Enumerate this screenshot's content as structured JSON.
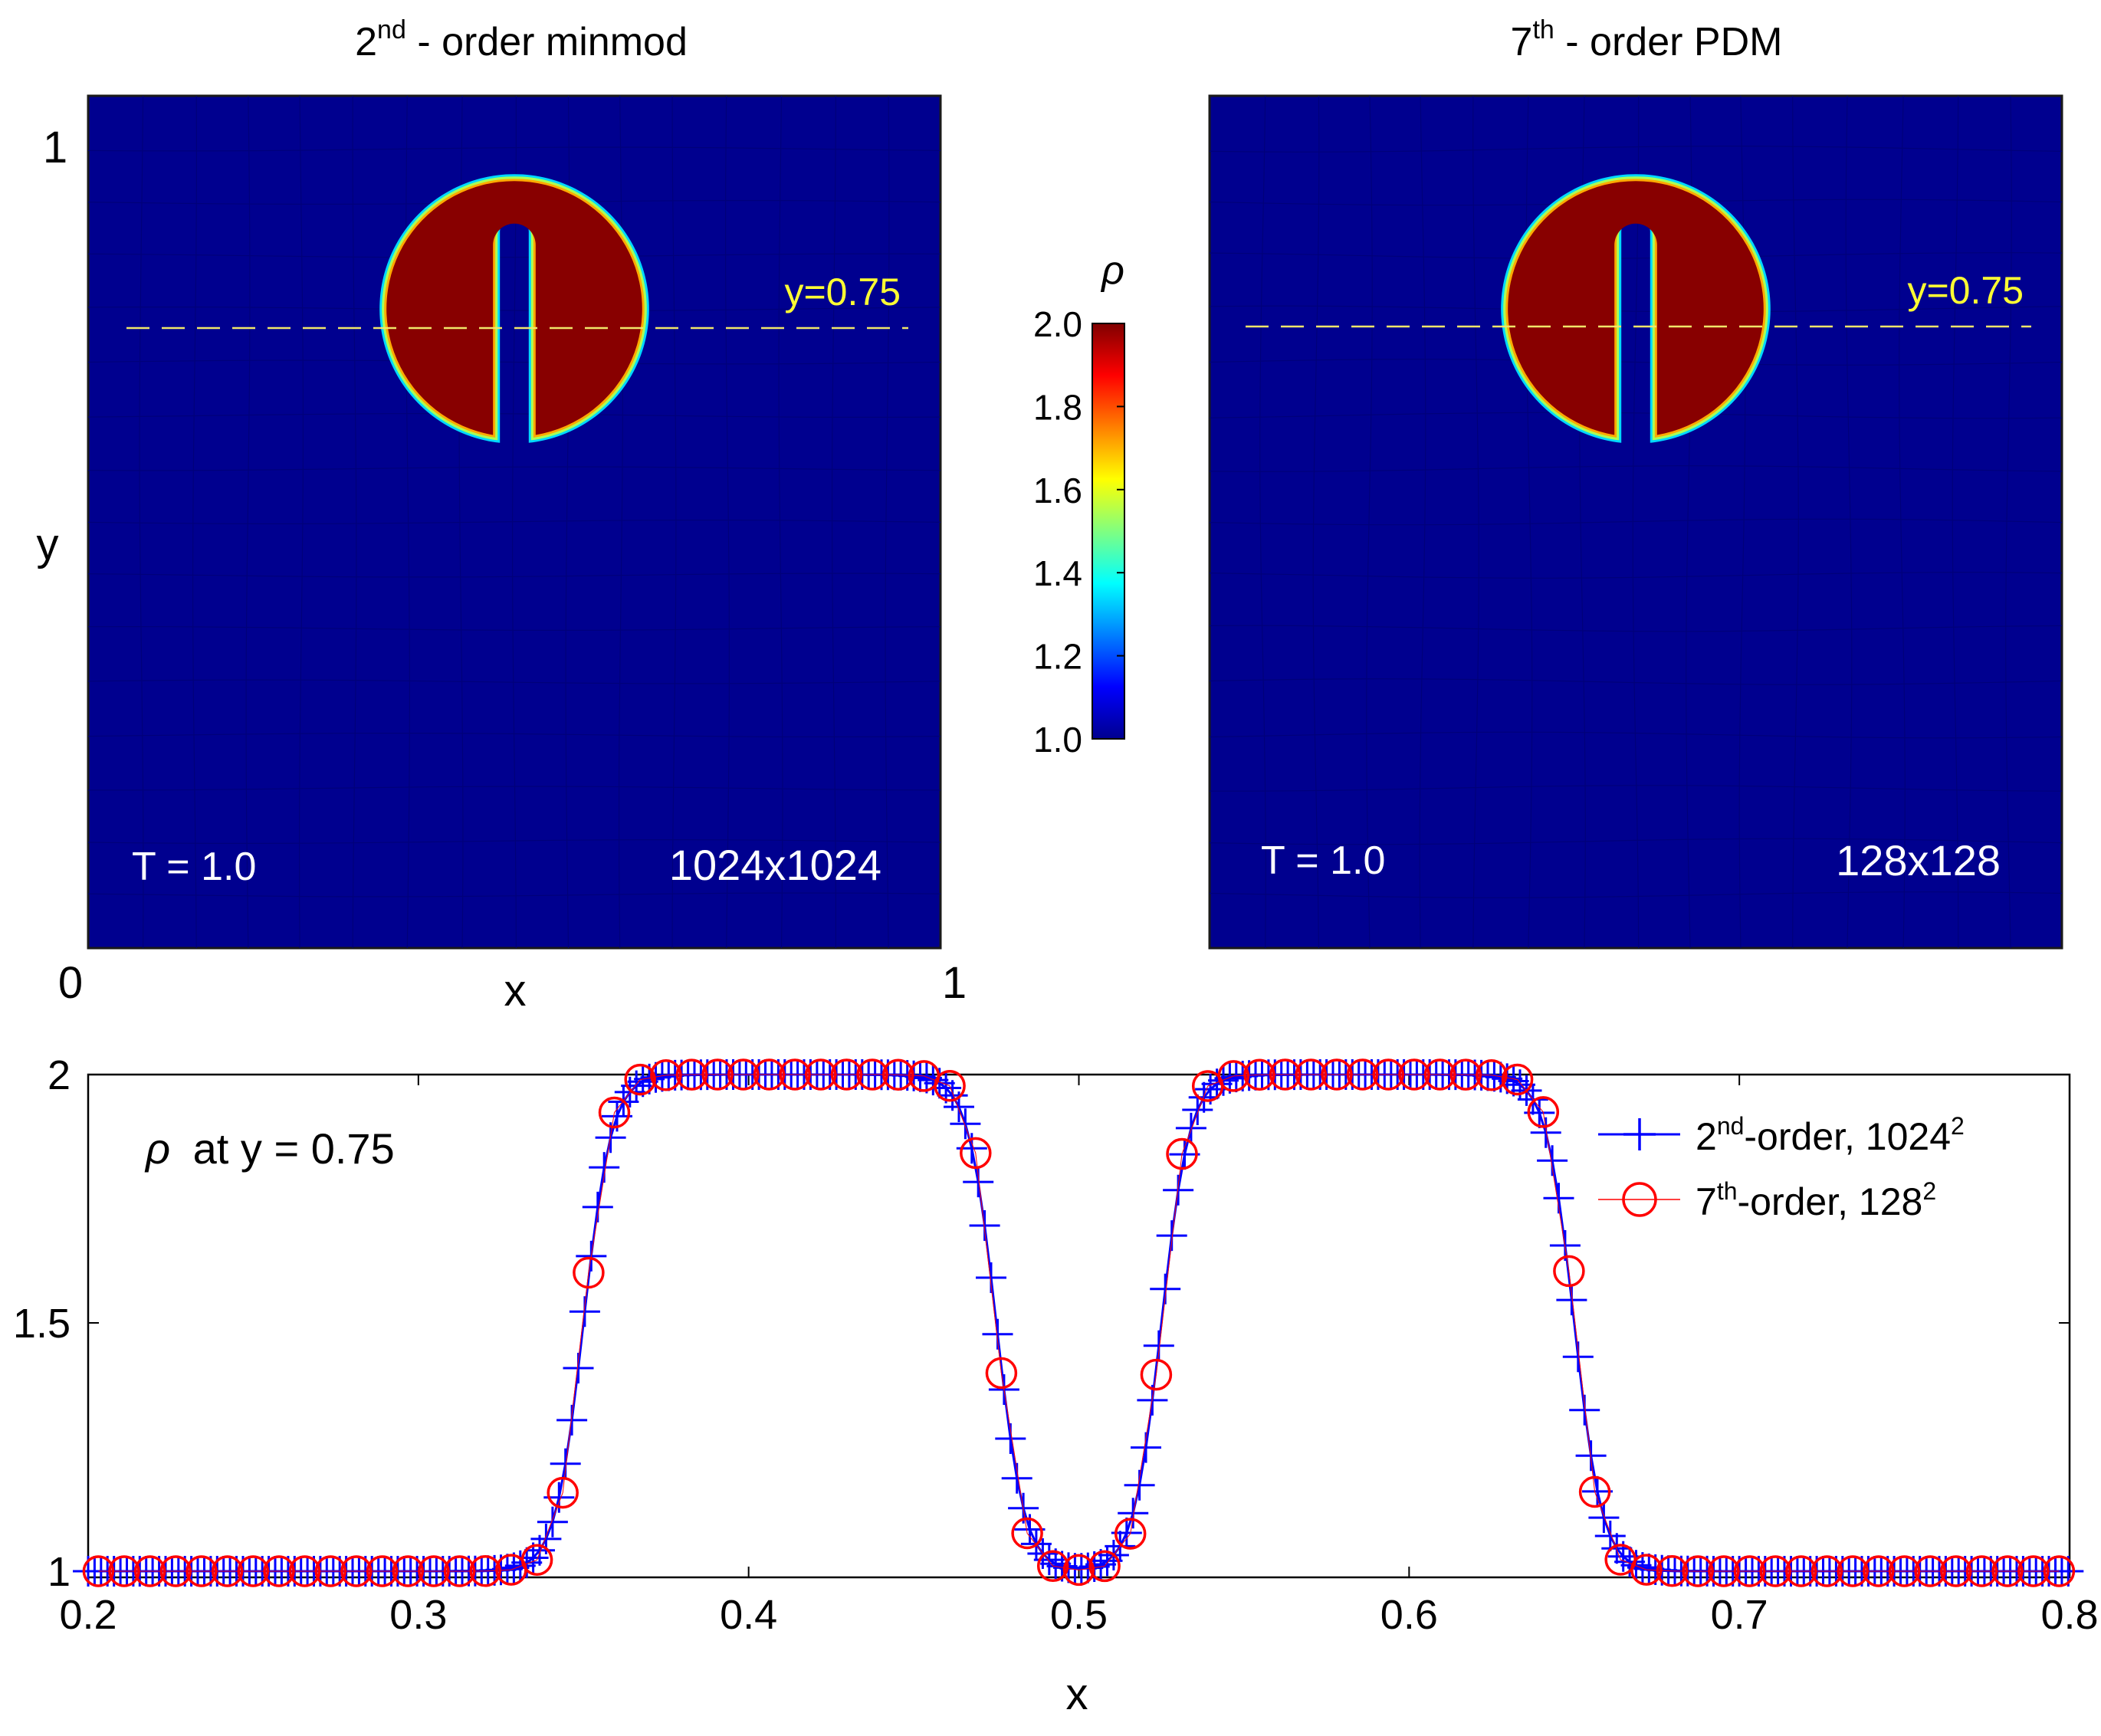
{
  "chart_data": [
    {
      "type": "heatmap",
      "title": {
        "base": "2",
        "sup": "nd",
        "rest": " - order minmod"
      },
      "xlabel": "x",
      "ylabel": "y",
      "xlim": [
        0,
        1
      ],
      "ylim": [
        0,
        1
      ],
      "xticks": [
        "0",
        "1"
      ],
      "yticks": [
        "1"
      ],
      "time_label": "T = 1.0",
      "grid_label": "1024x1024",
      "cut_label": "y=0.75",
      "cut_y": 0.75,
      "field": {
        "description": "slotted disk",
        "background": 1.0,
        "peak": 2.0,
        "center": [
          0.5,
          0.75
        ],
        "radius": 0.15,
        "slot_width": 0.05,
        "slot_top": 0.85
      }
    },
    {
      "type": "heatmap",
      "title": {
        "base": "7",
        "sup": "th",
        "rest": " - order PDM"
      },
      "xlim": [
        0,
        1
      ],
      "ylim": [
        0,
        1
      ],
      "time_label": "T = 1.0",
      "grid_label": "128x128",
      "cut_label": "y=0.75",
      "cut_y": 0.75,
      "field": {
        "description": "slotted disk",
        "background": 1.0,
        "peak": 2.0,
        "center": [
          0.5,
          0.75
        ],
        "radius": 0.15,
        "slot_width": 0.05,
        "slot_top": 0.85
      }
    },
    {
      "type": "colorbar",
      "label": "ρ",
      "range": [
        1.0,
        2.0
      ],
      "ticks": [
        "1.0",
        "1.2",
        "1.4",
        "1.6",
        "1.8",
        "2.0"
      ],
      "colormap": "jet"
    },
    {
      "type": "line",
      "annotation": "ρ at y = 0.75",
      "xlabel": "x",
      "ylabel": "",
      "xlim": [
        0.2,
        0.8
      ],
      "ylim": [
        1,
        2
      ],
      "xticks": [
        "0.2",
        "0.3",
        "0.4",
        "0.5",
        "0.6",
        "0.7",
        "0.8"
      ],
      "yticks": [
        "1",
        "1.5",
        "2"
      ],
      "profile": {
        "edges": [
          0.35,
          0.475,
          0.525,
          0.65
        ],
        "low": 1.0,
        "high": 2.0
      },
      "series": [
        {
          "name": {
            "base": "2",
            "sup": "nd",
            "rest": "-order, 1024",
            "sup2": "2"
          },
          "marker": "plus",
          "color": "#0000ff",
          "x_start": 0.2,
          "x_end": 0.8,
          "dx": 0.0019531,
          "width": 0.0085
        },
        {
          "name": {
            "base": "7",
            "sup": "th",
            "rest": "-order, 128",
            "sup2": "2"
          },
          "marker": "circle",
          "color": "#ff0000",
          "x_start": 0.2031,
          "x_end": 0.8,
          "dx": 0.0078125,
          "width": 0.0075
        }
      ]
    }
  ]
}
